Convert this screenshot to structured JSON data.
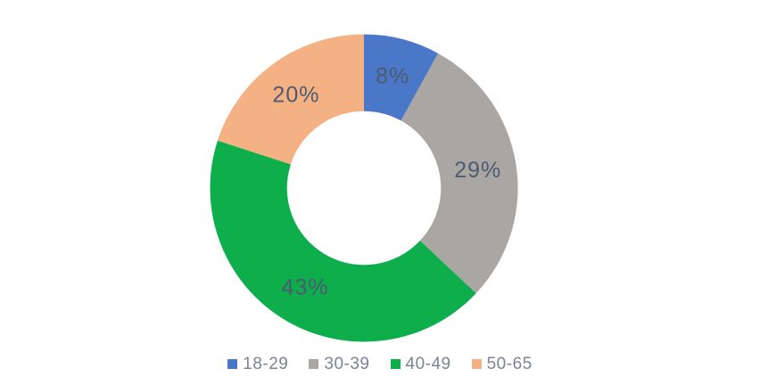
{
  "chart_data": {
    "type": "pie",
    "subtype": "donut",
    "title": "",
    "categories": [
      "18-29",
      "30-39",
      "40-49",
      "50-65"
    ],
    "values": [
      8,
      29,
      43,
      20
    ],
    "data_labels": [
      "8%",
      "29%",
      "43%",
      "20%"
    ],
    "colors": [
      "#4a77c8",
      "#a9a6a4",
      "#0eae4d",
      "#f4b183"
    ],
    "start_angle_deg": 0,
    "direction": "clockwise",
    "inner_radius_ratio": 0.5,
    "legend_position": "bottom",
    "label_color": "#4d5a6f",
    "legend_text_color": "#7b8494",
    "background_color": "#ffffff"
  }
}
